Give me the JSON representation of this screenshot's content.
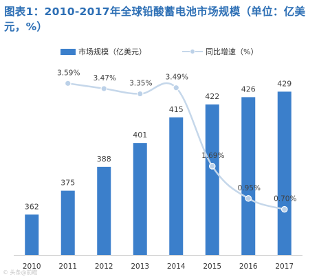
{
  "chart_title": "图表1：2010-2017年全球铅酸蓄电池市场规模（单位：亿美元，%）",
  "watermark": "© 头条@前瞻",
  "colors": {
    "title": "#2d6fb5",
    "bar": "#3b7fcb",
    "line": "#c5d7ea",
    "marker": "#bcd1e8",
    "label": "#404040",
    "axis": "#cccccc"
  },
  "legend": {
    "bar_label": "市场规模（亿美元）",
    "line_label": "同比增速（%）"
  },
  "chart_data": {
    "type": "bar",
    "categories": [
      "2010",
      "2011",
      "2012",
      "2013",
      "2014",
      "2015",
      "2016",
      "2017"
    ],
    "series": [
      {
        "name": "市场规模（亿美元）",
        "type": "bar",
        "values": [
          362,
          375,
          388,
          401,
          415,
          422,
          426,
          429
        ],
        "labels": [
          "362",
          "375",
          "388",
          "401",
          "415",
          "422",
          "426",
          "429"
        ]
      },
      {
        "name": "同比增速（%）",
        "type": "line",
        "smooth": true,
        "values": [
          null,
          3.59,
          3.47,
          3.35,
          3.49,
          1.69,
          0.95,
          0.7
        ],
        "labels": [
          "",
          "3.59%",
          "3.47%",
          "3.35%",
          "3.49%",
          "1.69%",
          "0.95%",
          "0.70%"
        ]
      }
    ],
    "xlabel": "",
    "ylabel": "",
    "grid": false,
    "legend_position": "top"
  }
}
